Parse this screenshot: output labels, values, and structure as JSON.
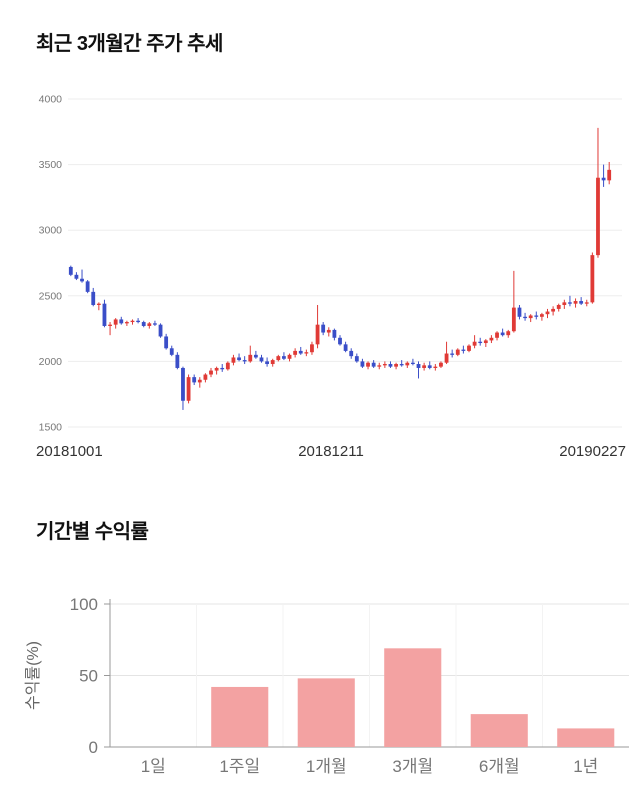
{
  "chart_data": [
    {
      "type": "candlestick",
      "title": "최근 3개월간 주가 추세",
      "x_tick_labels": [
        "20181001",
        "20181211",
        "20190227"
      ],
      "ylim": [
        1500,
        4000
      ],
      "y_ticks": [
        1500,
        2000,
        2500,
        3000,
        3500,
        4000
      ],
      "grid": true,
      "up_color": "#e03a36",
      "down_color": "#3a4ec8",
      "candles": [
        [
          2720,
          2730,
          2650,
          2660
        ],
        [
          2660,
          2680,
          2620,
          2630
        ],
        [
          2630,
          2700,
          2600,
          2610
        ],
        [
          2610,
          2620,
          2520,
          2530
        ],
        [
          2530,
          2560,
          2420,
          2430
        ],
        [
          2430,
          2450,
          2390,
          2440
        ],
        [
          2440,
          2470,
          2260,
          2270
        ],
        [
          2270,
          2300,
          2200,
          2280
        ],
        [
          2280,
          2330,
          2250,
          2320
        ],
        [
          2320,
          2340,
          2280,
          2290
        ],
        [
          2290,
          2310,
          2270,
          2300
        ],
        [
          2300,
          2320,
          2280,
          2310
        ],
        [
          2310,
          2330,
          2290,
          2300
        ],
        [
          2300,
          2310,
          2260,
          2270
        ],
        [
          2270,
          2300,
          2250,
          2290
        ],
        [
          2290,
          2310,
          2270,
          2280
        ],
        [
          2280,
          2290,
          2180,
          2190
        ],
        [
          2190,
          2210,
          2090,
          2100
        ],
        [
          2100,
          2120,
          2040,
          2050
        ],
        [
          2050,
          2070,
          1940,
          1950
        ],
        [
          1950,
          1960,
          1630,
          1700
        ],
        [
          1700,
          1900,
          1680,
          1880
        ],
        [
          1880,
          1900,
          1820,
          1840
        ],
        [
          1840,
          1880,
          1800,
          1860
        ],
        [
          1860,
          1910,
          1840,
          1900
        ],
        [
          1900,
          1950,
          1880,
          1930
        ],
        [
          1930,
          1960,
          1900,
          1950
        ],
        [
          1950,
          1980,
          1920,
          1940
        ],
        [
          1940,
          2000,
          1930,
          1990
        ],
        [
          1990,
          2050,
          1970,
          2030
        ],
        [
          2030,
          2060,
          2000,
          2010
        ],
        [
          2010,
          2040,
          1980,
          2000
        ],
        [
          2000,
          2120,
          1990,
          2050
        ],
        [
          2050,
          2080,
          2020,
          2030
        ],
        [
          2030,
          2050,
          1990,
          2000
        ],
        [
          2000,
          2030,
          1960,
          1980
        ],
        [
          1980,
          2020,
          1960,
          2010
        ],
        [
          2010,
          2050,
          2000,
          2040
        ],
        [
          2040,
          2070,
          2010,
          2020
        ],
        [
          2020,
          2060,
          2000,
          2050
        ],
        [
          2050,
          2100,
          2030,
          2080
        ],
        [
          2080,
          2110,
          2050,
          2060
        ],
        [
          2060,
          2090,
          2040,
          2070
        ],
        [
          2070,
          2150,
          2050,
          2130
        ],
        [
          2130,
          2430,
          2100,
          2280
        ],
        [
          2280,
          2300,
          2200,
          2220
        ],
        [
          2220,
          2260,
          2190,
          2240
        ],
        [
          2240,
          2250,
          2160,
          2180
        ],
        [
          2180,
          2200,
          2120,
          2130
        ],
        [
          2130,
          2150,
          2070,
          2080
        ],
        [
          2080,
          2100,
          2020,
          2040
        ],
        [
          2040,
          2060,
          1990,
          2000
        ],
        [
          2000,
          2020,
          1950,
          1960
        ],
        [
          1960,
          2000,
          1940,
          1990
        ],
        [
          1990,
          2010,
          1950,
          1960
        ],
        [
          1960,
          1990,
          1940,
          1970
        ],
        [
          1970,
          2000,
          1950,
          1980
        ],
        [
          1980,
          2000,
          1950,
          1960
        ],
        [
          1960,
          1990,
          1940,
          1980
        ],
        [
          1980,
          2010,
          1960,
          1970
        ],
        [
          1970,
          2000,
          1950,
          1990
        ],
        [
          1990,
          2020,
          1970,
          1980
        ],
        [
          1980,
          2000,
          1870,
          1950
        ],
        [
          1950,
          1990,
          1930,
          1970
        ],
        [
          1970,
          2000,
          1940,
          1950
        ],
        [
          1950,
          1980,
          1930,
          1960
        ],
        [
          1960,
          2000,
          1950,
          1990
        ],
        [
          1990,
          2150,
          1980,
          2060
        ],
        [
          2060,
          2090,
          2030,
          2050
        ],
        [
          2050,
          2100,
          2040,
          2090
        ],
        [
          2090,
          2120,
          2060,
          2080
        ],
        [
          2080,
          2130,
          2070,
          2120
        ],
        [
          2120,
          2200,
          2100,
          2150
        ],
        [
          2150,
          2180,
          2120,
          2140
        ],
        [
          2140,
          2170,
          2110,
          2160
        ],
        [
          2160,
          2200,
          2140,
          2180
        ],
        [
          2180,
          2230,
          2160,
          2220
        ],
        [
          2220,
          2250,
          2190,
          2200
        ],
        [
          2200,
          2240,
          2180,
          2230
        ],
        [
          2230,
          2690,
          2220,
          2410
        ],
        [
          2410,
          2430,
          2320,
          2340
        ],
        [
          2340,
          2370,
          2310,
          2330
        ],
        [
          2330,
          2360,
          2300,
          2350
        ],
        [
          2350,
          2380,
          2320,
          2340
        ],
        [
          2340,
          2370,
          2310,
          2360
        ],
        [
          2360,
          2400,
          2330,
          2380
        ],
        [
          2380,
          2420,
          2350,
          2400
        ],
        [
          2400,
          2440,
          2380,
          2430
        ],
        [
          2430,
          2470,
          2400,
          2450
        ],
        [
          2450,
          2500,
          2420,
          2440
        ],
        [
          2440,
          2480,
          2410,
          2460
        ],
        [
          2460,
          2490,
          2430,
          2440
        ],
        [
          2440,
          2470,
          2420,
          2450
        ],
        [
          2450,
          2830,
          2440,
          2810
        ],
        [
          2810,
          3780,
          2790,
          3400
        ],
        [
          3400,
          3500,
          3330,
          3380
        ],
        [
          3380,
          3520,
          3350,
          3460
        ]
      ]
    },
    {
      "type": "bar",
      "title": "기간별 수익률",
      "ylabel": "수익률(%)",
      "categories": [
        "1일",
        "1주일",
        "1개월",
        "3개월",
        "6개월",
        "1년"
      ],
      "values": [
        0,
        42,
        48,
        69,
        23,
        13
      ],
      "ylim": [
        0,
        100
      ],
      "y_ticks": [
        0,
        50,
        100
      ],
      "grid": true,
      "legend": "none",
      "bar_color": "#f3a2a2",
      "axis_color": "#999999",
      "tick_label_color": "#777777"
    }
  ]
}
